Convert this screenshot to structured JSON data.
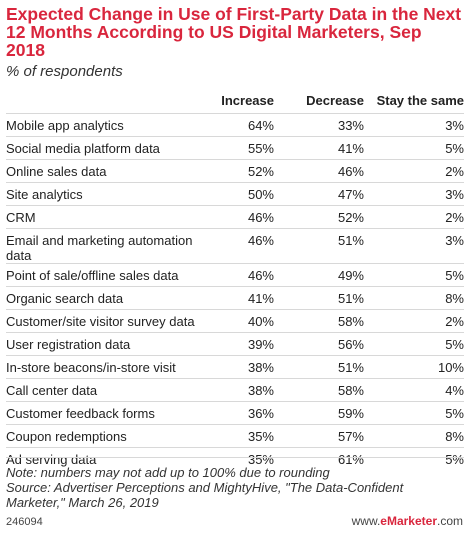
{
  "chart_data": {
    "type": "table",
    "title": "Expected Change in Use of First-Party Data in the Next 12 Months According to US Digital Marketers, Sep 2018",
    "subtitle": "% of respondents",
    "columns": [
      "",
      "Increase",
      "Decrease",
      "Stay the same"
    ],
    "rows": [
      {
        "label": "Mobile app analytics",
        "values": [
          "64%",
          "33%",
          "3%"
        ]
      },
      {
        "label": "Social media platform data",
        "values": [
          "55%",
          "41%",
          "5%"
        ]
      },
      {
        "label": "Online sales data",
        "values": [
          "52%",
          "46%",
          "2%"
        ]
      },
      {
        "label": "Site analytics",
        "values": [
          "50%",
          "47%",
          "3%"
        ]
      },
      {
        "label": "CRM",
        "values": [
          "46%",
          "52%",
          "2%"
        ]
      },
      {
        "label": "Email and marketing automation data",
        "values": [
          "46%",
          "51%",
          "3%"
        ]
      },
      {
        "label": "Point of sale/offline sales data",
        "values": [
          "46%",
          "49%",
          "5%"
        ]
      },
      {
        "label": "Organic search data",
        "values": [
          "41%",
          "51%",
          "8%"
        ]
      },
      {
        "label": "Customer/site visitor survey data",
        "values": [
          "40%",
          "58%",
          "2%"
        ]
      },
      {
        "label": "User registration data",
        "values": [
          "39%",
          "56%",
          "5%"
        ]
      },
      {
        "label": "In-store beacons/in-store visit",
        "values": [
          "38%",
          "51%",
          "10%"
        ]
      },
      {
        "label": "Call center data",
        "values": [
          "38%",
          "58%",
          "4%"
        ]
      },
      {
        "label": "Customer feedback forms",
        "values": [
          "36%",
          "59%",
          "5%"
        ]
      },
      {
        "label": "Coupon redemptions",
        "values": [
          "35%",
          "57%",
          "8%"
        ]
      },
      {
        "label": "Ad serving data",
        "values": [
          "35%",
          "61%",
          "5%"
        ]
      }
    ],
    "note": "Note: numbers may not add up to 100% due to rounding",
    "source": "Source: Advertiser Perceptions and MightyHive, \"The Data-Confident Marketer,\" March 26, 2019",
    "chart_id": "246094",
    "brand_prefix": "www.",
    "brand_name": "eMarketer",
    "brand_suffix": ".com",
    "colors": {
      "title": "#d9263d",
      "rule": "#d8d8d8"
    }
  }
}
